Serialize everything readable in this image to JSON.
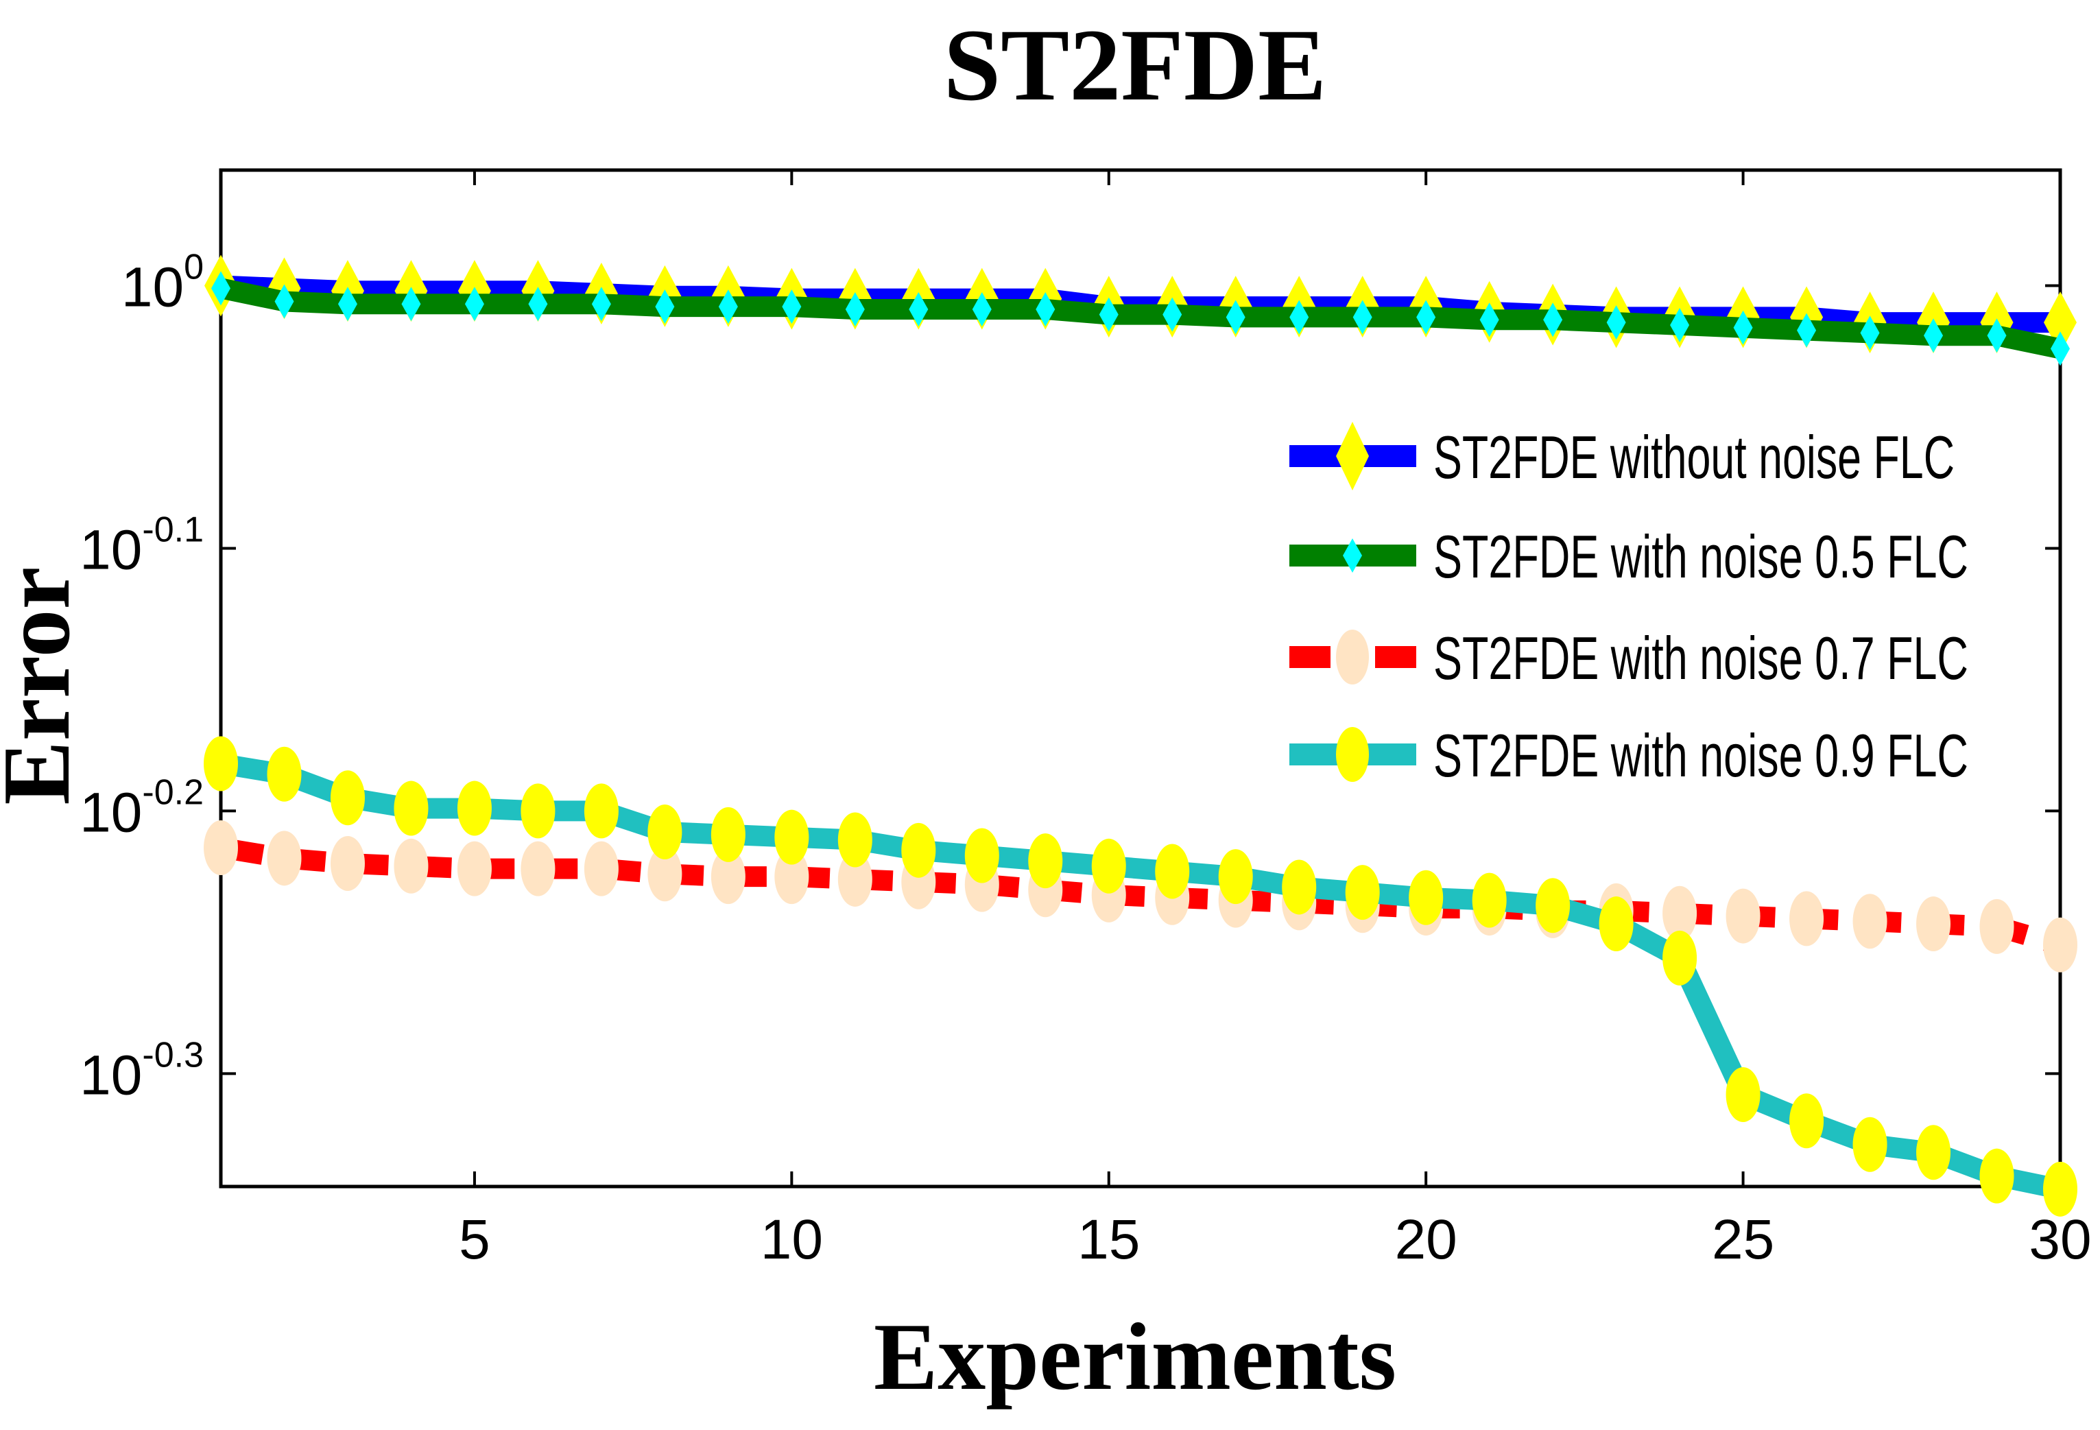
{
  "chart_data": {
    "type": "line",
    "title": "ST2FDE",
    "xlabel": "Experiments",
    "ylabel": "Error",
    "yscale": "log10",
    "xlim": [
      1,
      30
    ],
    "ylim_log10": [
      -0.343,
      0.044
    ],
    "xticks": [
      5,
      10,
      15,
      20,
      25,
      30
    ],
    "yticks": [
      {
        "exp": 0,
        "base": "10",
        "sup": "0"
      },
      {
        "exp": -0.1,
        "base": "10",
        "sup": "-0.1"
      },
      {
        "exp": -0.2,
        "base": "10",
        "sup": "-0.2"
      },
      {
        "exp": -0.3,
        "base": "10",
        "sup": "-0.3"
      }
    ],
    "grid": false,
    "legend_position": "right-middle",
    "x": [
      1,
      2,
      3,
      4,
      5,
      6,
      7,
      8,
      9,
      10,
      11,
      12,
      13,
      14,
      15,
      16,
      17,
      18,
      19,
      20,
      21,
      22,
      23,
      24,
      25,
      26,
      27,
      28,
      29,
      30
    ],
    "series": [
      {
        "name": "ST2FDE without noise FLC",
        "line_color": "#0000ff",
        "marker": "diamond",
        "marker_color": "#ffff00",
        "line_style": "solid",
        "log10_values": [
          0.0,
          -0.001,
          -0.002,
          -0.002,
          -0.002,
          -0.002,
          -0.003,
          -0.004,
          -0.004,
          -0.005,
          -0.005,
          -0.005,
          -0.005,
          -0.005,
          -0.008,
          -0.008,
          -0.008,
          -0.008,
          -0.008,
          -0.008,
          -0.01,
          -0.011,
          -0.012,
          -0.012,
          -0.012,
          -0.012,
          -0.014,
          -0.014,
          -0.014,
          -0.014
        ]
      },
      {
        "name": "ST2FDE with noise 0.5 FLC",
        "line_color": "#008000",
        "marker": "diamond",
        "marker_color": "#00ffff",
        "line_style": "solid",
        "log10_values": [
          -0.001,
          -0.006,
          -0.007,
          -0.007,
          -0.007,
          -0.007,
          -0.007,
          -0.008,
          -0.008,
          -0.008,
          -0.009,
          -0.009,
          -0.009,
          -0.009,
          -0.011,
          -0.011,
          -0.012,
          -0.012,
          -0.012,
          -0.012,
          -0.013,
          -0.013,
          -0.014,
          -0.015,
          -0.016,
          -0.017,
          -0.018,
          -0.019,
          -0.019,
          -0.024
        ]
      },
      {
        "name": "ST2FDE with noise 0.7 FLC",
        "line_color": "#ff0000",
        "marker": "circle",
        "marker_color": "#ffe4c4",
        "line_style": "dashed",
        "log10_values": [
          -0.214,
          -0.218,
          -0.22,
          -0.221,
          -0.222,
          -0.222,
          -0.222,
          -0.224,
          -0.225,
          -0.225,
          -0.226,
          -0.227,
          -0.228,
          -0.23,
          -0.232,
          -0.233,
          -0.234,
          -0.235,
          -0.236,
          -0.237,
          -0.237,
          -0.238,
          -0.238,
          -0.239,
          -0.24,
          -0.241,
          -0.242,
          -0.243,
          -0.244,
          -0.251
        ]
      },
      {
        "name": "ST2FDE with noise 0.9 FLC",
        "line_color": "#20c0c0",
        "marker": "circle",
        "marker_color": "#ffff00",
        "line_style": "solid",
        "log10_values": [
          -0.182,
          -0.186,
          -0.195,
          -0.199,
          -0.199,
          -0.2,
          -0.2,
          -0.208,
          -0.209,
          -0.21,
          -0.211,
          -0.215,
          -0.217,
          -0.219,
          -0.221,
          -0.223,
          -0.225,
          -0.229,
          -0.231,
          -0.233,
          -0.234,
          -0.236,
          -0.243,
          -0.256,
          -0.308,
          -0.318,
          -0.327,
          -0.33,
          -0.339,
          -0.344
        ]
      }
    ]
  }
}
